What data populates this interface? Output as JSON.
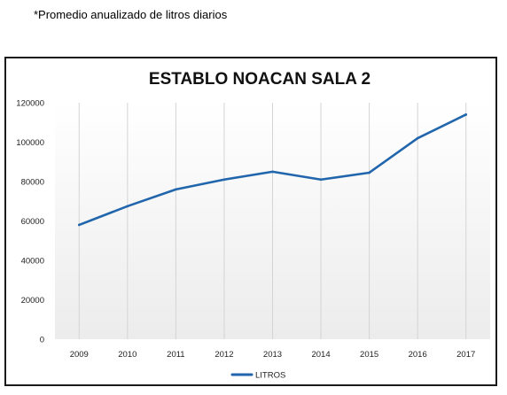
{
  "note": "*Promedio anualizado de litros diarios",
  "chart_data": {
    "type": "line",
    "title": "ESTABLO NOACAN SALA 2",
    "xlabel": "",
    "ylabel": "",
    "categories": [
      "2009",
      "2010",
      "2011",
      "2012",
      "2013",
      "2014",
      "2015",
      "2016",
      "2017"
    ],
    "series": [
      {
        "name": "LITROS",
        "values": [
          58000,
          67500,
          76000,
          81000,
          85000,
          81000,
          84500,
          102000,
          114000
        ],
        "color": "#2166ac"
      }
    ],
    "ylim": [
      0,
      120000
    ],
    "yticks": [
      "0",
      "20000",
      "40000",
      "60000",
      "80000",
      "100000",
      "120000"
    ],
    "grid": "vertical",
    "legend": "bottom"
  }
}
